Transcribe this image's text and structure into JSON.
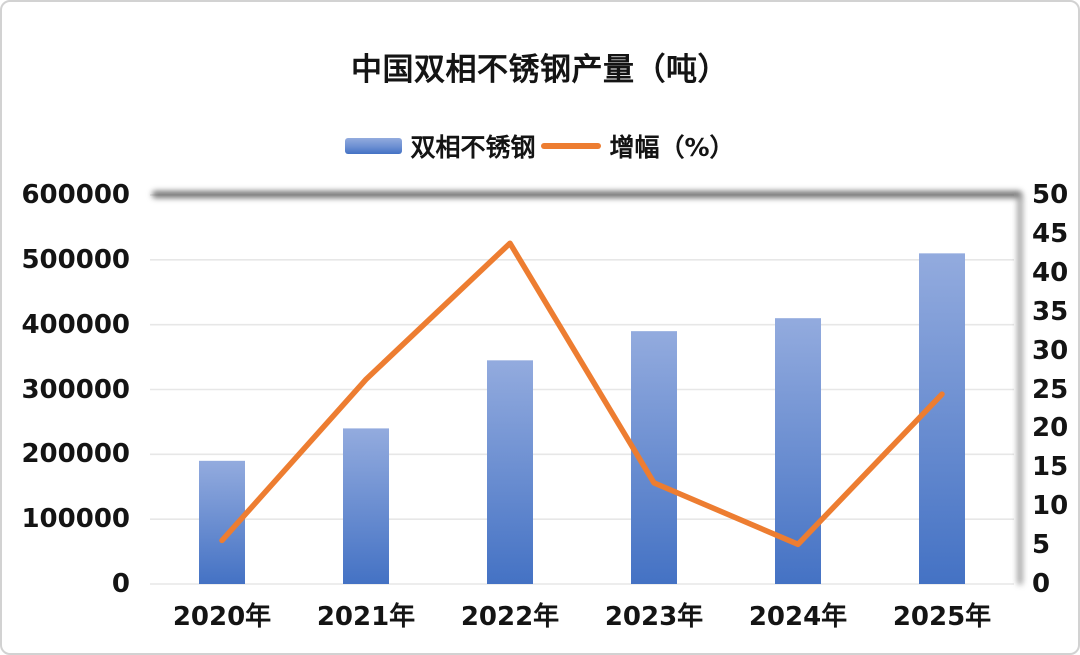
{
  "title": "中国双相不锈钢产量（吨）",
  "colors": {
    "bar_gradient_top": "#93ABDE",
    "bar_gradient_bottom": "#4472C4",
    "line": "#ED7D31",
    "gridline": "#E7E7E7",
    "text": "#141414",
    "frame_border": "#D2D2D2",
    "plot_shadow": "#6E6E6E"
  },
  "legend": {
    "position": "top",
    "items": [
      {
        "label": "双相不锈钢",
        "marker": "bar-swatch"
      },
      {
        "label": "增幅（%）",
        "marker": "line-swatch"
      }
    ]
  },
  "chart_data": {
    "type": "bar",
    "combo": "bar + line, dual y-axes",
    "title": "中国双相不锈钢产量（吨）",
    "categories": [
      "2020年",
      "2021年",
      "2022年",
      "2023年",
      "2024年",
      "2025年"
    ],
    "series": [
      {
        "name": "双相不锈钢",
        "type": "bar",
        "axis": "left",
        "values": [
          190000,
          240000,
          345000,
          390000,
          410000,
          510000
        ]
      },
      {
        "name": "增幅（%）",
        "type": "line",
        "axis": "right",
        "values": [
          5.6,
          26.3,
          43.8,
          13.0,
          5.1,
          24.4
        ]
      }
    ],
    "axes": {
      "left": {
        "min": 0,
        "max": 600000,
        "step": 100000,
        "ticks": [
          "0",
          "100000",
          "200000",
          "300000",
          "400000",
          "500000",
          "600000"
        ]
      },
      "right": {
        "min": 0,
        "max": 50,
        "step": 5,
        "ticks": [
          "0",
          "5",
          "10",
          "15",
          "20",
          "25",
          "30",
          "35",
          "40",
          "45",
          "50"
        ]
      }
    },
    "grid": true,
    "legend_position": "top-center"
  }
}
